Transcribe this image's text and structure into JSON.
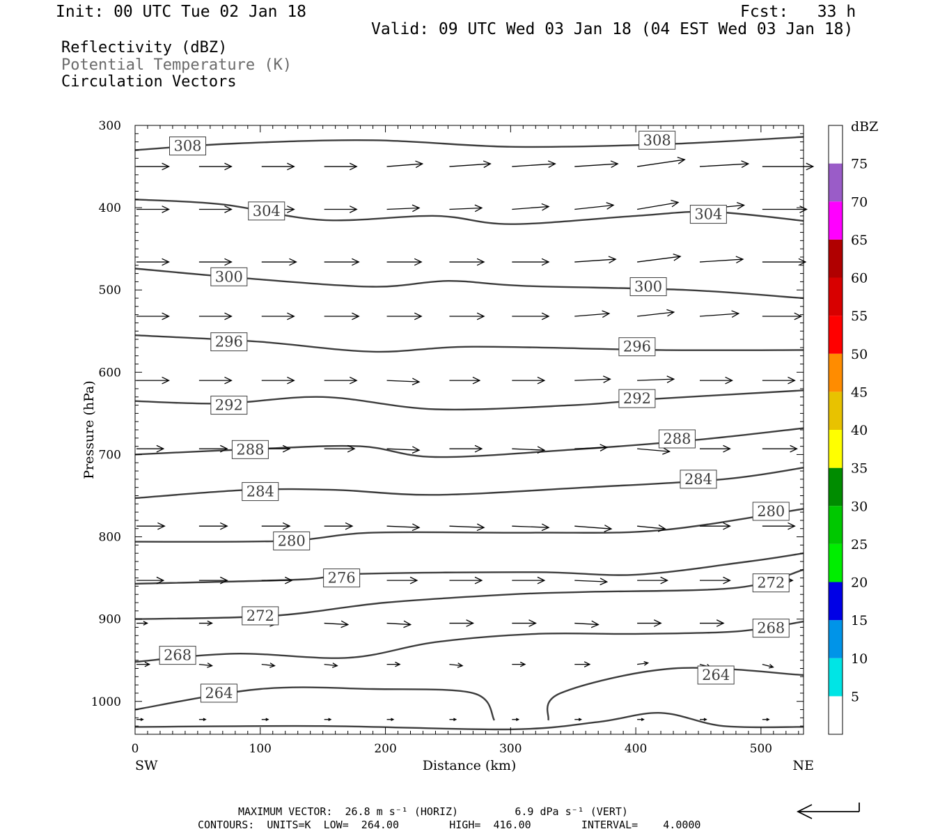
{
  "header": {
    "init": "Init: 00 UTC Tue 02 Jan 18",
    "fcst": "Fcst:   33 h",
    "valid": "Valid: 09 UTC Wed 03 Jan 18 (04 EST Wed 03 Jan 18)"
  },
  "legend": {
    "line1": "Reflectivity (dBZ)",
    "line2": "Potential Temperature (K)",
    "line3": "Circulation Vectors"
  },
  "footer": {
    "line1": "MAXIMUM VECTOR:  26.8 m s⁻¹ (HORIZ)         6.9 dPa s⁻¹ (VERT)",
    "line2": "CONTOURS:  UNITS=K  LOW=  264.00        HIGH=  416.00        INTERVAL=    4.0000"
  },
  "chart_data": {
    "type": "contour",
    "xlabel": "Distance (km)",
    "ylabel": "Pressure (hPa)",
    "x_ticks": [
      0,
      100,
      200,
      300,
      400,
      500
    ],
    "y_ticks": [
      300,
      400,
      500,
      600,
      700,
      800,
      900,
      1000
    ],
    "xlim": [
      0,
      534
    ],
    "ylim": [
      300,
      1040
    ],
    "x_ends": {
      "left": "SW",
      "right": "NE"
    },
    "colorbar": {
      "title": "dBZ",
      "levels": [
        5,
        10,
        15,
        20,
        25,
        30,
        35,
        40,
        45,
        50,
        55,
        60,
        65,
        70,
        75
      ],
      "colors": [
        "#ffffff",
        "#00e5e5",
        "#0094e8",
        "#0000e6",
        "#00ee00",
        "#00c800",
        "#008c00",
        "#ffff00",
        "#e8c200",
        "#ff8c00",
        "#ff0000",
        "#d80000",
        "#b00000",
        "#ff00ff",
        "#9a5cc8",
        "#ffffff"
      ]
    },
    "theta_contours": [
      {
        "label": "308",
        "label_pos": [
          [
            42,
            325
          ],
          [
            417,
            318
          ]
        ],
        "points": [
          [
            0,
            330
          ],
          [
            80,
            322
          ],
          [
            190,
            318
          ],
          [
            300,
            326
          ],
          [
            420,
            323
          ],
          [
            534,
            314
          ]
        ]
      },
      {
        "label": "304",
        "label_pos": [
          [
            105,
            404
          ],
          [
            458,
            408
          ]
        ],
        "points": [
          [
            0,
            390
          ],
          [
            70,
            396
          ],
          [
            150,
            415
          ],
          [
            240,
            410
          ],
          [
            300,
            420
          ],
          [
            400,
            410
          ],
          [
            460,
            405
          ],
          [
            534,
            416
          ]
        ]
      },
      {
        "label": "300",
        "label_pos": [
          [
            75,
            484
          ],
          [
            410,
            496
          ]
        ],
        "points": [
          [
            0,
            474
          ],
          [
            90,
            486
          ],
          [
            190,
            496
          ],
          [
            250,
            489
          ],
          [
            310,
            495
          ],
          [
            440,
            500
          ],
          [
            534,
            510
          ]
        ]
      },
      {
        "label": "296",
        "label_pos": [
          [
            75,
            563
          ],
          [
            401,
            569
          ]
        ],
        "points": [
          [
            0,
            555
          ],
          [
            100,
            563
          ],
          [
            190,
            575
          ],
          [
            270,
            569
          ],
          [
            420,
            573
          ],
          [
            534,
            573
          ]
        ]
      },
      {
        "label": "292",
        "label_pos": [
          [
            75,
            640
          ],
          [
            401,
            632
          ]
        ],
        "points": [
          [
            0,
            635
          ],
          [
            70,
            638
          ],
          [
            150,
            630
          ],
          [
            240,
            645
          ],
          [
            350,
            640
          ],
          [
            420,
            632
          ],
          [
            534,
            622
          ]
        ]
      },
      {
        "label": "288",
        "label_pos": [
          [
            92,
            694
          ],
          [
            433,
            681
          ]
        ],
        "points": [
          [
            0,
            700
          ],
          [
            100,
            693
          ],
          [
            180,
            690
          ],
          [
            240,
            703
          ],
          [
            350,
            694
          ],
          [
            450,
            682
          ],
          [
            534,
            668
          ]
        ]
      },
      {
        "label": "284",
        "label_pos": [
          [
            100,
            745
          ],
          [
            450,
            730
          ]
        ],
        "points": [
          [
            0,
            753
          ],
          [
            90,
            743
          ],
          [
            160,
            743
          ],
          [
            240,
            749
          ],
          [
            360,
            740
          ],
          [
            470,
            730
          ],
          [
            534,
            716
          ]
        ]
      },
      {
        "label": "280",
        "label_pos": [
          [
            125,
            805
          ],
          [
            508,
            769
          ]
        ],
        "points": [
          [
            0,
            806
          ],
          [
            120,
            805
          ],
          [
            190,
            795
          ],
          [
            320,
            795
          ],
          [
            420,
            792
          ],
          [
            534,
            766
          ]
        ]
      },
      {
        "label": "276",
        "label_pos": [
          [
            165,
            850
          ]
        ],
        "points": [
          [
            0,
            857
          ],
          [
            130,
            852
          ],
          [
            180,
            845
          ],
          [
            320,
            843
          ],
          [
            400,
            846
          ],
          [
            490,
            830
          ],
          [
            534,
            820
          ]
        ]
      },
      {
        "label": "272",
        "label_pos": [
          [
            100,
            896
          ],
          [
            508,
            856
          ]
        ],
        "points": [
          [
            0,
            900
          ],
          [
            110,
            896
          ],
          [
            200,
            880
          ],
          [
            300,
            870
          ],
          [
            360,
            867
          ],
          [
            480,
            862
          ],
          [
            534,
            840
          ]
        ]
      },
      {
        "label": "268",
        "label_pos": [
          [
            34,
            944
          ],
          [
            508,
            911
          ]
        ],
        "points": [
          [
            0,
            952
          ],
          [
            80,
            942
          ],
          [
            170,
            947
          ],
          [
            240,
            928
          ],
          [
            320,
            918
          ],
          [
            400,
            918
          ],
          [
            480,
            915
          ],
          [
            534,
            903
          ]
        ]
      },
      {
        "label": "264",
        "label_pos": [
          [
            67,
            990
          ],
          [
            464,
            968
          ]
        ],
        "points": [
          [
            0,
            1010
          ],
          [
            100,
            985
          ],
          [
            190,
            985
          ],
          [
            270,
            990
          ],
          [
            287,
            1023
          ]
        ]
      },
      {
        "label": "",
        "label_pos": [],
        "points": [
          [
            330,
            1023
          ],
          [
            340,
            990
          ],
          [
            430,
            960
          ],
          [
            534,
            968
          ]
        ]
      },
      {
        "label": "",
        "label_pos": [],
        "points": [
          [
            0,
            1031
          ],
          [
            150,
            1030
          ],
          [
            300,
            1034
          ],
          [
            370,
            1025
          ],
          [
            420,
            1014
          ],
          [
            470,
            1030
          ],
          [
            534,
            1031
          ]
        ]
      }
    ],
    "vectors": {
      "levels_hpa": [
        350,
        402,
        466,
        532,
        610,
        693,
        787,
        853,
        905,
        955,
        1022
      ],
      "x_km": [
        0,
        50,
        100,
        150,
        200,
        250,
        300,
        350,
        400,
        450,
        500
      ],
      "u": [
        [
          30,
          30,
          30,
          30,
          33,
          38,
          40,
          40,
          44,
          45,
          47
        ],
        [
          30,
          30,
          30,
          30,
          30,
          30,
          34,
          36,
          38,
          41,
          41
        ],
        [
          30,
          30,
          32,
          32,
          32,
          32,
          34,
          38,
          40,
          40,
          40
        ],
        [
          30,
          30,
          30,
          32,
          32,
          32,
          34,
          32,
          34,
          36,
          36
        ],
        [
          30,
          30,
          30,
          30,
          30,
          28,
          30,
          33,
          34,
          30,
          30
        ],
        [
          25,
          26,
          26,
          28,
          30,
          30,
          30,
          30,
          30,
          28,
          32
        ],
        [
          26,
          26,
          26,
          26,
          30,
          32,
          34,
          34,
          26,
          28,
          30
        ],
        [
          25,
          26,
          28,
          28,
          28,
          30,
          30,
          30,
          28,
          28,
          28
        ],
        [
          10,
          12,
          12,
          22,
          22,
          22,
          22,
          22,
          22,
          22,
          22
        ],
        [
          12,
          12,
          12,
          12,
          12,
          12,
          12,
          14,
          10,
          10,
          10
        ],
        [
          6,
          6,
          6,
          6,
          6,
          6,
          6,
          6,
          6,
          6,
          6
        ]
      ],
      "v": [
        [
          0,
          0,
          0,
          0,
          4,
          4,
          4,
          4,
          10,
          4,
          0
        ],
        [
          0,
          0,
          0,
          0,
          2,
          2,
          4,
          6,
          10,
          6,
          0
        ],
        [
          0,
          0,
          0,
          0,
          0,
          0,
          0,
          4,
          8,
          4,
          0
        ],
        [
          0,
          0,
          0,
          0,
          0,
          0,
          0,
          4,
          6,
          4,
          0
        ],
        [
          0,
          0,
          0,
          0,
          -2,
          0,
          0,
          2,
          2,
          0,
          0
        ],
        [
          0,
          0,
          0,
          0,
          -2,
          0,
          -2,
          2,
          -4,
          0,
          0
        ],
        [
          0,
          0,
          0,
          0,
          -2,
          -2,
          -2,
          -4,
          -4,
          0,
          0
        ],
        [
          0,
          0,
          0,
          0,
          0,
          0,
          0,
          -2,
          0,
          0,
          0
        ],
        [
          0,
          0,
          -2,
          -2,
          -2,
          0,
          0,
          -2,
          0,
          0,
          0
        ],
        [
          0,
          -2,
          -2,
          -2,
          0,
          -2,
          0,
          0,
          2,
          -4,
          -4
        ],
        [
          0,
          0,
          0,
          0,
          0,
          0,
          0,
          0,
          0,
          0,
          0
        ]
      ]
    }
  }
}
